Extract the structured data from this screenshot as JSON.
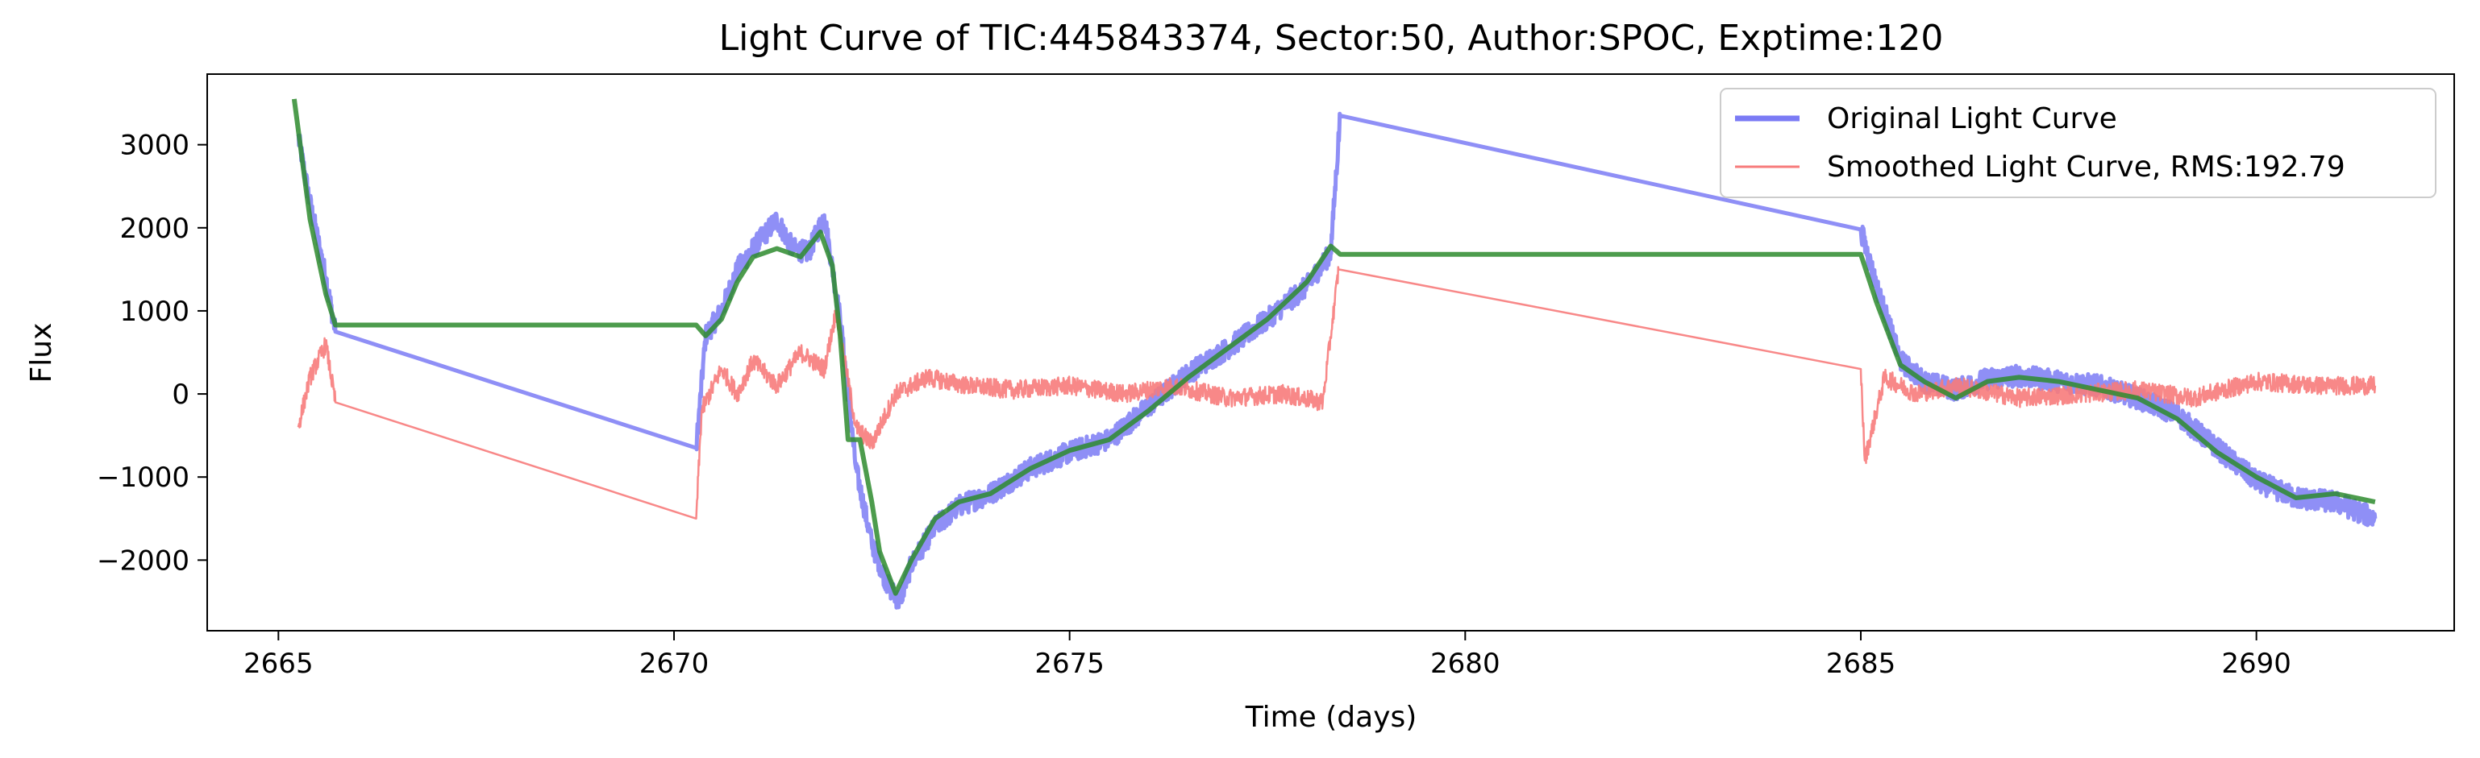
{
  "chart_data": {
    "type": "line",
    "title": "Light Curve of TIC:445843374, Sector:50, Author:SPOC, Exptime:120",
    "xlabel": "Time (days)",
    "ylabel": "Flux",
    "xlim": [
      2664.1,
      2692.5
    ],
    "ylim": [
      -2850,
      3850
    ],
    "xticks": [
      2665,
      2670,
      2675,
      2680,
      2685,
      2690
    ],
    "yticks": [
      -2000,
      -1000,
      0,
      1000,
      2000,
      3000
    ],
    "xtick_labels": [
      "2665",
      "2670",
      "2675",
      "2680",
      "2685",
      "2690"
    ],
    "ytick_labels": [
      "−2000",
      "−1000",
      "0",
      "1000",
      "2000",
      "3000"
    ],
    "grid": false,
    "legend_position": "upper right",
    "series": [
      {
        "name": "Original Light Curve",
        "color": "#7b7bf5",
        "noise": 130,
        "x": [
          2665.25,
          2665.4,
          2665.6,
          2665.72,
          2670.28,
          2670.4,
          2670.6,
          2670.8,
          2671.0,
          2671.3,
          2671.5,
          2671.7,
          2671.9,
          2672.1,
          2672.3,
          2672.5,
          2672.7,
          2672.85,
          2673.0,
          2673.3,
          2673.6,
          2674.0,
          2674.5,
          2675.0,
          2675.5,
          2676.0,
          2676.5,
          2677.0,
          2677.5,
          2678.0,
          2678.3,
          2678.42,
          2685.0,
          2685.2,
          2685.5,
          2685.8,
          2686.2,
          2686.6,
          2687.0,
          2687.5,
          2688.0,
          2688.5,
          2689.0,
          2689.5,
          2690.0,
          2690.5,
          2691.0,
          2691.5
        ],
        "y": [
          3100,
          2300,
          1400,
          750,
          -650,
          700,
          1000,
          1500,
          1750,
          2100,
          1750,
          1700,
          2150,
          900,
          -900,
          -1800,
          -2300,
          -2500,
          -2050,
          -1600,
          -1350,
          -1200,
          -900,
          -700,
          -550,
          -150,
          250,
          550,
          900,
          1300,
          1700,
          3350,
          1980,
          1300,
          400,
          150,
          50,
          180,
          220,
          150,
          100,
          -50,
          -250,
          -650,
          -1050,
          -1250,
          -1300,
          -1500
        ]
      },
      {
        "name": "Smoothed Light Curve, RMS:192.79",
        "color": "#f77b7b",
        "noise": 110,
        "x": [
          2665.25,
          2665.4,
          2665.6,
          2665.72,
          2670.28,
          2670.35,
          2670.6,
          2670.8,
          2671.0,
          2671.3,
          2671.6,
          2671.9,
          2672.05,
          2672.3,
          2672.5,
          2672.8,
          2673.2,
          2673.7,
          2674.3,
          2675.0,
          2675.7,
          2676.3,
          2677.0,
          2677.7,
          2678.2,
          2678.4,
          2685.0,
          2685.05,
          2685.3,
          2685.7,
          2686.2,
          2687.0,
          2687.8,
          2688.5,
          2689.2,
          2690.0,
          2690.8,
          2691.5
        ],
        "y": [
          -400,
          200,
          600,
          -100,
          -1500,
          -200,
          300,
          0,
          400,
          100,
          500,
          300,
          1000,
          -400,
          -600,
          0,
          200,
          100,
          50,
          100,
          0,
          100,
          -50,
          0,
          -100,
          1500,
          300,
          -800,
          200,
          0,
          100,
          -50,
          0,
          50,
          -50,
          150,
          100,
          100
        ]
      },
      {
        "name": "",
        "color": "#2e8b2e",
        "noise": 0,
        "x": [
          2665.2,
          2665.4,
          2665.6,
          2665.72,
          2670.28,
          2670.4,
          2670.6,
          2670.8,
          2671.0,
          2671.3,
          2671.6,
          2671.85,
          2672.0,
          2672.1,
          2672.2,
          2672.35,
          2672.5,
          2672.6,
          2672.8,
          2673.0,
          2673.3,
          2673.6,
          2674.0,
          2674.5,
          2675.0,
          2675.5,
          2676.0,
          2676.5,
          2677.0,
          2677.5,
          2678.0,
          2678.3,
          2678.42,
          2685.0,
          2685.2,
          2685.5,
          2685.8,
          2686.2,
          2686.6,
          2687.0,
          2687.5,
          2688.0,
          2688.5,
          2689.0,
          2689.5,
          2690.0,
          2690.5,
          2691.0,
          2691.5
        ],
        "y": [
          3550,
          2100,
          1200,
          830,
          830,
          700,
          900,
          1350,
          1650,
          1750,
          1650,
          1950,
          1550,
          700,
          -550,
          -550,
          -1300,
          -1900,
          -2400,
          -2000,
          -1500,
          -1300,
          -1200,
          -900,
          -680,
          -550,
          -200,
          200,
          550,
          900,
          1350,
          1780,
          1680,
          1680,
          1100,
          350,
          150,
          -50,
          150,
          200,
          150,
          50,
          -50,
          -300,
          -700,
          -1000,
          -1250,
          -1200,
          -1300
        ]
      }
    ]
  }
}
